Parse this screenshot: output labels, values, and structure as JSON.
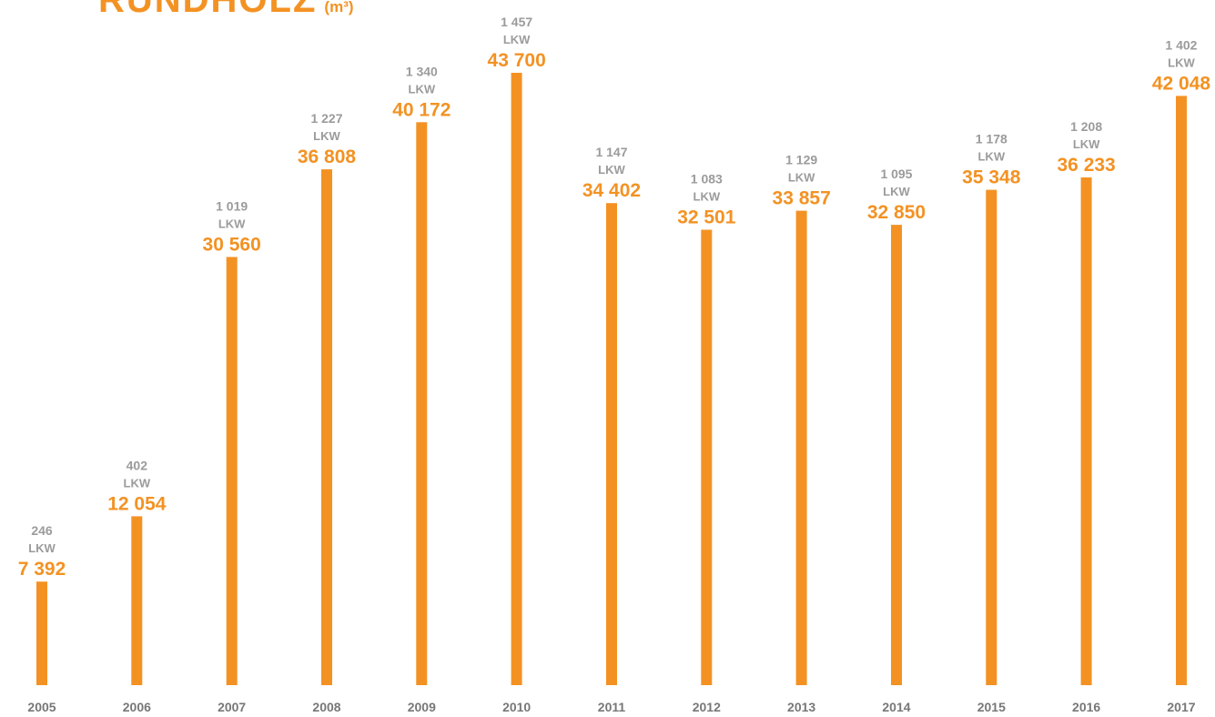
{
  "title": "RUNDHOLZ",
  "unit": "(m³)",
  "colors": {
    "bar": "#f39223",
    "value": "#f39223",
    "trucks": "#9b9b9b",
    "year": "#777777"
  },
  "chart_data": {
    "type": "bar",
    "title": "RUNDHOLZ",
    "unit": "(m³)",
    "categories": [
      "2005",
      "2006",
      "2007",
      "2008",
      "2009",
      "2010",
      "2011",
      "2012",
      "2013",
      "2014",
      "2015",
      "2016",
      "2017"
    ],
    "series": [
      {
        "values": [
          7392,
          12054,
          30560,
          36808,
          40172,
          43700,
          34402,
          32501,
          33857,
          32850,
          35348,
          36233,
          42048
        ]
      },
      {
        "values": [
          246,
          402,
          1019,
          1227,
          1340,
          1457,
          1147,
          1083,
          1129,
          1095,
          1178,
          1208,
          1402
        ]
      }
    ],
    "value_labels": [
      "7 392",
      "12 054",
      "30 560",
      "36 808",
      "40 172",
      "43 700",
      "34 402",
      "32 501",
      "33 857",
      "32 850",
      "35 348",
      "36 233",
      "42 048"
    ],
    "truck_labels": [
      "246",
      "402",
      "1 019",
      "1 227",
      "1 340",
      "1 457",
      "1 147",
      "1 083",
      "1 129",
      "1 095",
      "1 178",
      "1 208",
      "1 402"
    ],
    "truck_unit": "LKW",
    "ylim": [
      0,
      43700
    ],
    "grid": false,
    "xlabel": "",
    "ylabel": ""
  }
}
